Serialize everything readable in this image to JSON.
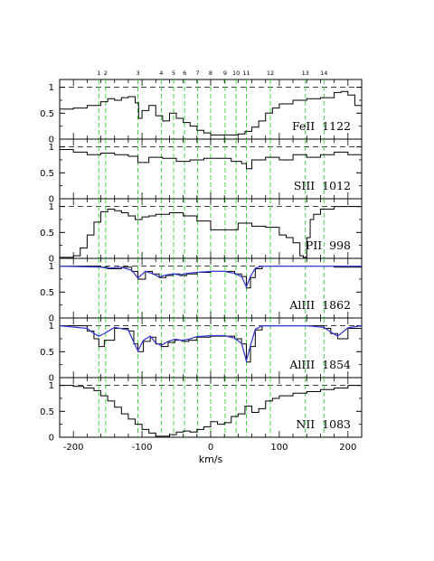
{
  "chart_data": {
    "type": "line",
    "xlabel": "km/s",
    "xlim": [
      -220,
      220
    ],
    "x_ticks": [
      -200,
      -100,
      0,
      100,
      200
    ],
    "ylim": [
      0,
      1.15
    ],
    "y_ticks": [
      0,
      0.5,
      1
    ],
    "y_tick_labels": [
      "0",
      "0.5",
      "1"
    ],
    "continuum_level": 1.0,
    "components": [
      {
        "id": "1",
        "v": -163
      },
      {
        "id": "2",
        "v": -153
      },
      {
        "id": "3",
        "v": -106
      },
      {
        "id": "4",
        "v": -72
      },
      {
        "id": "5",
        "v": -54
      },
      {
        "id": "6",
        "v": -38
      },
      {
        "id": "7",
        "v": -19
      },
      {
        "id": "8",
        "v": 0
      },
      {
        "id": "9",
        "v": 21
      },
      {
        "id": "10",
        "v": 37
      },
      {
        "id": "11",
        "v": 52
      },
      {
        "id": "12",
        "v": 87
      },
      {
        "id": "13",
        "v": 138
      },
      {
        "id": "14",
        "v": 165
      }
    ],
    "panels": [
      {
        "ion": "FeII  1122",
        "observed": {
          "v": [
            -220,
            -200,
            -180,
            -160,
            -150,
            -140,
            -130,
            -120,
            -110,
            -105,
            -100,
            -90,
            -80,
            -70,
            -60,
            -50,
            -40,
            -30,
            -20,
            -10,
            0,
            10,
            20,
            30,
            40,
            50,
            60,
            70,
            80,
            90,
            100,
            120,
            140,
            160,
            180,
            190,
            200,
            210,
            220
          ],
          "flux": [
            0.58,
            0.6,
            0.65,
            0.72,
            0.78,
            0.75,
            0.8,
            0.82,
            0.7,
            0.4,
            0.55,
            0.65,
            0.45,
            0.35,
            0.5,
            0.4,
            0.32,
            0.25,
            0.17,
            0.12,
            0.08,
            0.08,
            0.08,
            0.08,
            0.1,
            0.15,
            0.23,
            0.35,
            0.5,
            0.6,
            0.68,
            0.75,
            0.78,
            0.8,
            0.9,
            0.92,
            0.85,
            0.65,
            0.5
          ]
        }
      },
      {
        "ion": "SIII  1012",
        "observed": {
          "v": [
            -220,
            -200,
            -180,
            -160,
            -140,
            -120,
            -106,
            -90,
            -70,
            -50,
            -30,
            -10,
            10,
            30,
            45,
            52,
            60,
            80,
            100,
            120,
            140,
            160,
            180,
            200,
            220
          ],
          "flux": [
            0.95,
            0.9,
            0.85,
            0.88,
            0.85,
            0.82,
            0.7,
            0.8,
            0.78,
            0.72,
            0.75,
            0.78,
            0.78,
            0.72,
            0.68,
            0.58,
            0.75,
            0.8,
            0.75,
            0.85,
            0.8,
            0.85,
            0.9,
            0.85,
            0.9
          ]
        }
      },
      {
        "ion": "PII  998",
        "observed": {
          "v": [
            -220,
            -210,
            -200,
            -190,
            -180,
            -170,
            -160,
            -150,
            -140,
            -130,
            -120,
            -110,
            -100,
            -90,
            -80,
            -60,
            -40,
            -20,
            0,
            20,
            40,
            60,
            80,
            100,
            110,
            120,
            130,
            135,
            140,
            145,
            150,
            160,
            180,
            200,
            220
          ],
          "flux": [
            0.02,
            0.02,
            0.05,
            0.2,
            0.45,
            0.7,
            0.9,
            0.95,
            0.92,
            0.88,
            0.82,
            0.75,
            0.8,
            0.82,
            0.85,
            0.88,
            0.82,
            0.72,
            0.55,
            0.55,
            0.68,
            0.62,
            0.6,
            0.45,
            0.4,
            0.3,
            0.05,
            0.02,
            0.4,
            0.75,
            0.85,
            0.95,
            1.0,
            1.0,
            1.02
          ]
        }
      },
      {
        "ion": "AlIII  1862",
        "observed": {
          "v": [
            -220,
            -160,
            -150,
            -130,
            -115,
            -106,
            -95,
            -85,
            -75,
            -65,
            -55,
            -45,
            -35,
            -20,
            0,
            20,
            35,
            45,
            52,
            58,
            65,
            75,
            100,
            140,
            180,
            220
          ],
          "flux": [
            1.0,
            0.98,
            0.95,
            0.98,
            0.9,
            0.75,
            0.9,
            0.85,
            0.78,
            0.82,
            0.85,
            0.82,
            0.85,
            0.88,
            0.9,
            0.9,
            0.85,
            0.8,
            0.58,
            0.78,
            0.95,
            1.0,
            1.0,
            1.0,
            0.98,
            0.95
          ]
        },
        "model": {
          "v": [
            -220,
            -160,
            -150,
            -130,
            -115,
            -106,
            -95,
            -85,
            -75,
            -65,
            -55,
            -45,
            -35,
            -20,
            0,
            20,
            35,
            45,
            52,
            58,
            65,
            75,
            100,
            140,
            180,
            220
          ],
          "flux": [
            1.0,
            0.98,
            0.96,
            0.98,
            0.92,
            0.77,
            0.9,
            0.86,
            0.79,
            0.83,
            0.85,
            0.83,
            0.86,
            0.88,
            0.9,
            0.9,
            0.86,
            0.8,
            0.6,
            0.8,
            0.96,
            1.0,
            1.0,
            1.0,
            1.0,
            1.0
          ]
        }
      },
      {
        "ion": "AlIII  1854",
        "observed": {
          "v": [
            -220,
            -180,
            -170,
            -163,
            -155,
            -140,
            -120,
            -112,
            -106,
            -98,
            -88,
            -80,
            -72,
            -62,
            -52,
            -42,
            -32,
            -20,
            0,
            20,
            35,
            45,
            52,
            58,
            65,
            75,
            100,
            140,
            165,
            175,
            185,
            200,
            220
          ],
          "flux": [
            1.0,
            0.9,
            0.75,
            0.6,
            0.72,
            0.95,
            0.9,
            0.65,
            0.5,
            0.7,
            0.78,
            0.65,
            0.6,
            0.68,
            0.72,
            0.7,
            0.72,
            0.78,
            0.8,
            0.8,
            0.75,
            0.65,
            0.3,
            0.6,
            0.92,
            1.0,
            1.0,
            1.0,
            0.95,
            0.85,
            0.75,
            0.95,
            1.0
          ]
        },
        "model": {
          "v": [
            -220,
            -180,
            -170,
            -163,
            -155,
            -140,
            -120,
            -112,
            -106,
            -98,
            -88,
            -80,
            -72,
            -62,
            -52,
            -42,
            -32,
            -20,
            0,
            20,
            35,
            45,
            52,
            58,
            65,
            75,
            100,
            140,
            165,
            175,
            185,
            200,
            220
          ],
          "flux": [
            1.0,
            0.95,
            0.85,
            0.8,
            0.85,
            0.97,
            0.92,
            0.68,
            0.52,
            0.72,
            0.8,
            0.67,
            0.62,
            0.7,
            0.74,
            0.72,
            0.74,
            0.79,
            0.81,
            0.81,
            0.76,
            0.66,
            0.32,
            0.62,
            0.93,
            1.0,
            1.0,
            1.0,
            0.97,
            0.88,
            0.8,
            0.96,
            1.0
          ]
        }
      },
      {
        "ion": "NII  1083",
        "observed": {
          "v": [
            -220,
            -200,
            -185,
            -170,
            -160,
            -150,
            -140,
            -130,
            -120,
            -110,
            -100,
            -90,
            -80,
            -70,
            -60,
            -50,
            -40,
            -30,
            -20,
            -10,
            0,
            10,
            20,
            30,
            40,
            50,
            60,
            70,
            80,
            90,
            100,
            120,
            140,
            160,
            180,
            200,
            220
          ],
          "flux": [
            1.0,
            0.98,
            0.95,
            0.9,
            0.8,
            0.7,
            0.58,
            0.45,
            0.35,
            0.25,
            0.15,
            0.08,
            0.02,
            0.02,
            0.05,
            0.1,
            0.12,
            0.1,
            0.15,
            0.2,
            0.3,
            0.25,
            0.28,
            0.4,
            0.45,
            0.6,
            0.48,
            0.55,
            0.7,
            0.75,
            0.8,
            0.85,
            0.88,
            0.92,
            0.95,
            1.0,
            1.0
          ]
        }
      }
    ]
  },
  "colors": {
    "observed": "#000000",
    "model": "#3b3bd6",
    "component_lines": "#33cc33",
    "continuum": "#000000"
  }
}
